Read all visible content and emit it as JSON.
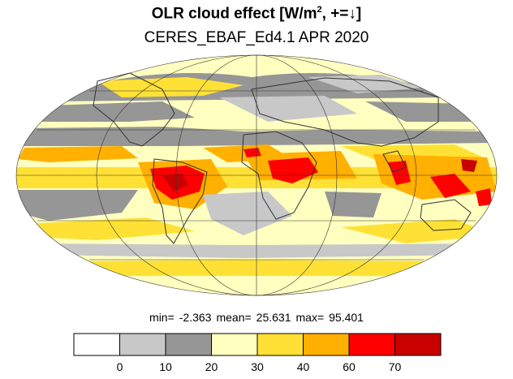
{
  "title": {
    "main_prefix": "OLR cloud effect [W/m",
    "superscript": "2",
    "main_suffix": ", +=↓]",
    "subtitle": "CERES_EBAF_Ed4.1 APR 2020"
  },
  "map": {
    "projection": "mollweide",
    "graticule": true,
    "ocean_background": "#ffffcc",
    "land_outline": "#333333"
  },
  "stats": {
    "min_label": "min=",
    "min_value": "-2.363",
    "mean_label": "mean=",
    "mean_value": "25.631",
    "max_label": "max=",
    "max_value": "95.401"
  },
  "colorbar": {
    "colors": [
      "#ffffff",
      "#c8c8c8",
      "#969696",
      "#ffffc0",
      "#ffe135",
      "#ffb000",
      "#ff0000",
      "#c80000"
    ],
    "tick_labels": [
      "0",
      "10",
      "20",
      "30",
      "40",
      "60",
      "70"
    ]
  }
}
